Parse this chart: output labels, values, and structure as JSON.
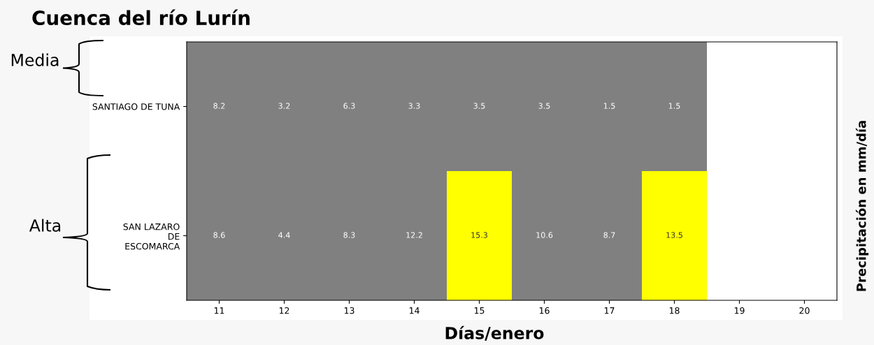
{
  "chart_data": {
    "type": "heatmap",
    "title": "Cuenca del río Lurín",
    "xlabel": "Días/enero",
    "y2label": "Precipitación en mm/día",
    "categories": [
      "11",
      "12",
      "13",
      "14",
      "15",
      "16",
      "17",
      "18",
      "19",
      "20"
    ],
    "y_categories": [
      "SANTIAGO DE TUNA",
      "SAN LAZARO\nDE\nESCOMARCA"
    ],
    "cells": [
      [
        8.2,
        3.2,
        6.3,
        3.3,
        3.5,
        3.5,
        1.5,
        1.5,
        null,
        null
      ],
      [
        8.6,
        4.4,
        8.3,
        12.2,
        15.3,
        10.6,
        8.7,
        13.5,
        null,
        null
      ]
    ],
    "colors": [
      [
        "#808080",
        "#808080",
        "#808080",
        "#808080",
        "#808080",
        "#808080",
        "#808080",
        "#808080",
        null,
        null
      ],
      [
        "#808080",
        "#808080",
        "#808080",
        "#808080",
        "#ffff00",
        "#808080",
        "#808080",
        "#ffff00",
        null,
        null
      ]
    ],
    "data_labels": true,
    "annotations": [
      "Media",
      "Alta"
    ]
  }
}
